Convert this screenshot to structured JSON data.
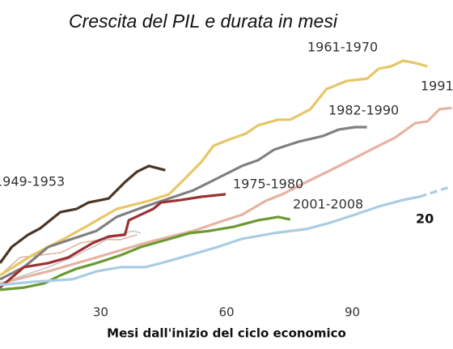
{
  "chart_data": {
    "type": "line",
    "title": "Crescita del PIL e durata in mesi",
    "x_label": "Mesi dall'inizio del ciclo economico",
    "xlim": [
      6,
      114
    ],
    "xticks": [
      30,
      60,
      90
    ],
    "ylim": [
      0,
      100
    ],
    "series": [
      {
        "name": "1949-1953",
        "color": "#4b3526",
        "x": [
          6,
          8.8,
          12.7,
          15.6,
          20.4,
          24.2,
          27.1,
          31.9,
          35.8,
          38.7,
          41.5,
          45.4
        ],
        "values": [
          12.3,
          18,
          22.3,
          24.6,
          30.3,
          31.4,
          33.7,
          35.1,
          40.9,
          44.6,
          46.6,
          45.1
        ]
      },
      {
        "name": "1961-1970",
        "color": "#e6c767",
        "x": [
          6,
          13.7,
          21.3,
          27.1,
          33.8,
          41.5,
          46.3,
          50.2,
          54,
          56.9,
          60.8,
          64.6,
          67.5,
          72.3,
          75.2,
          80,
          83.8,
          88.7,
          93.5,
          96.3,
          99.2,
          102.1,
          105,
          107.9
        ],
        "values": [
          8,
          15.1,
          20.9,
          25.7,
          31.4,
          34.3,
          36.6,
          42.3,
          48,
          53.7,
          56,
          58,
          60.9,
          62.9,
          62.9,
          66.6,
          73.7,
          76.6,
          77.4,
          80.9,
          81.7,
          83.7,
          82.9,
          81.7
        ]
      },
      {
        "name": "1991",
        "color": "#e6b3a2",
        "x": [
          6,
          17.5,
          29,
          40.6,
          52.1,
          57.9,
          63.7,
          69.4,
          73.3,
          79,
          84.8,
          90.6,
          94.4,
          100.2,
          105,
          107.9,
          110.8,
          113.7
        ],
        "values": [
          5.1,
          9.4,
          14.3,
          19.4,
          23.7,
          26.6,
          29.4,
          34.3,
          36.6,
          40.9,
          45.1,
          49.4,
          52.3,
          56.6,
          61.7,
          62.3,
          66.6,
          67.1
        ]
      },
      {
        "name": "1982-1990",
        "color": "#808080",
        "x": [
          6,
          11.7,
          17.5,
          23.3,
          29,
          33.8,
          40.6,
          46.3,
          52.1,
          57.9,
          63.7,
          67.5,
          71.3,
          77.1,
          82.9,
          86.7,
          90.6,
          93.5
        ],
        "values": [
          6.6,
          10.9,
          18,
          20.9,
          23.7,
          28.6,
          32.3,
          35.1,
          38,
          42.3,
          46.6,
          48.6,
          52.3,
          55.1,
          57.1,
          59.4,
          60.3,
          60.3
        ]
      },
      {
        "name": "1975-1980",
        "color": "#9b3232",
        "x": [
          6,
          11.7,
          17.5,
          22.3,
          24.2,
          28.1,
          31.9,
          35.8,
          36.7,
          39.6,
          42.5,
          44.4,
          49.2,
          54,
          59.8
        ],
        "values": [
          3.7,
          10.9,
          12.3,
          14.3,
          16,
          19.4,
          21.7,
          22.3,
          27.4,
          29.4,
          31.4,
          33.7,
          34.6,
          35.7,
          36.6
        ]
      },
      {
        "name": "2001-2008",
        "color": "#6b9a32",
        "x": [
          6,
          11.7,
          16.5,
          20.4,
          24.2,
          29,
          34.8,
          39.6,
          44.4,
          51.2,
          56,
          61.7,
          67.5,
          72.3,
          75.2
        ],
        "values": [
          2.9,
          3.7,
          5.1,
          8,
          10.3,
          12.3,
          15.1,
          18,
          20,
          22.9,
          23.7,
          25.1,
          27.4,
          28.6,
          27.7
        ]
      },
      {
        "name": "20",
        "color": "#a9cde2",
        "x": [
          6,
          13.7,
          23.3,
          29,
          34.8,
          40.6,
          44.4,
          51.2,
          57.9,
          63.7,
          71.3,
          79,
          84.8,
          90.6,
          96.3,
          102.1,
          106
        ],
        "values": [
          4.6,
          5.7,
          6.6,
          9.4,
          10.9,
          10.9,
          12.3,
          15.1,
          18,
          20.9,
          22.9,
          24.3,
          26.6,
          29.4,
          32.3,
          34.6,
          35.7
        ]
      },
      {
        "color": "#a9cde2",
        "style": "dashed",
        "x": [
          106,
          113.7
        ],
        "values": [
          35.7,
          39.4
        ]
      },
      {
        "color": "#dcb6a4",
        "style": "thin",
        "x": [
          6,
          10.8,
          15.6,
          20.4,
          25.2,
          30,
          34.8,
          38.7
        ],
        "values": [
          8,
          14.3,
          15.1,
          16,
          19.4,
          20.6,
          20.6,
          22.3
        ]
      },
      {
        "color": "#c8c8c8",
        "style": "thin",
        "x": [
          6,
          11.7,
          17.5,
          23.3,
          28.1,
          32.9,
          37.7,
          39.6
        ],
        "values": [
          5.1,
          8,
          10.9,
          14.3,
          18,
          21.7,
          23.7,
          22.9
        ]
      }
    ]
  }
}
